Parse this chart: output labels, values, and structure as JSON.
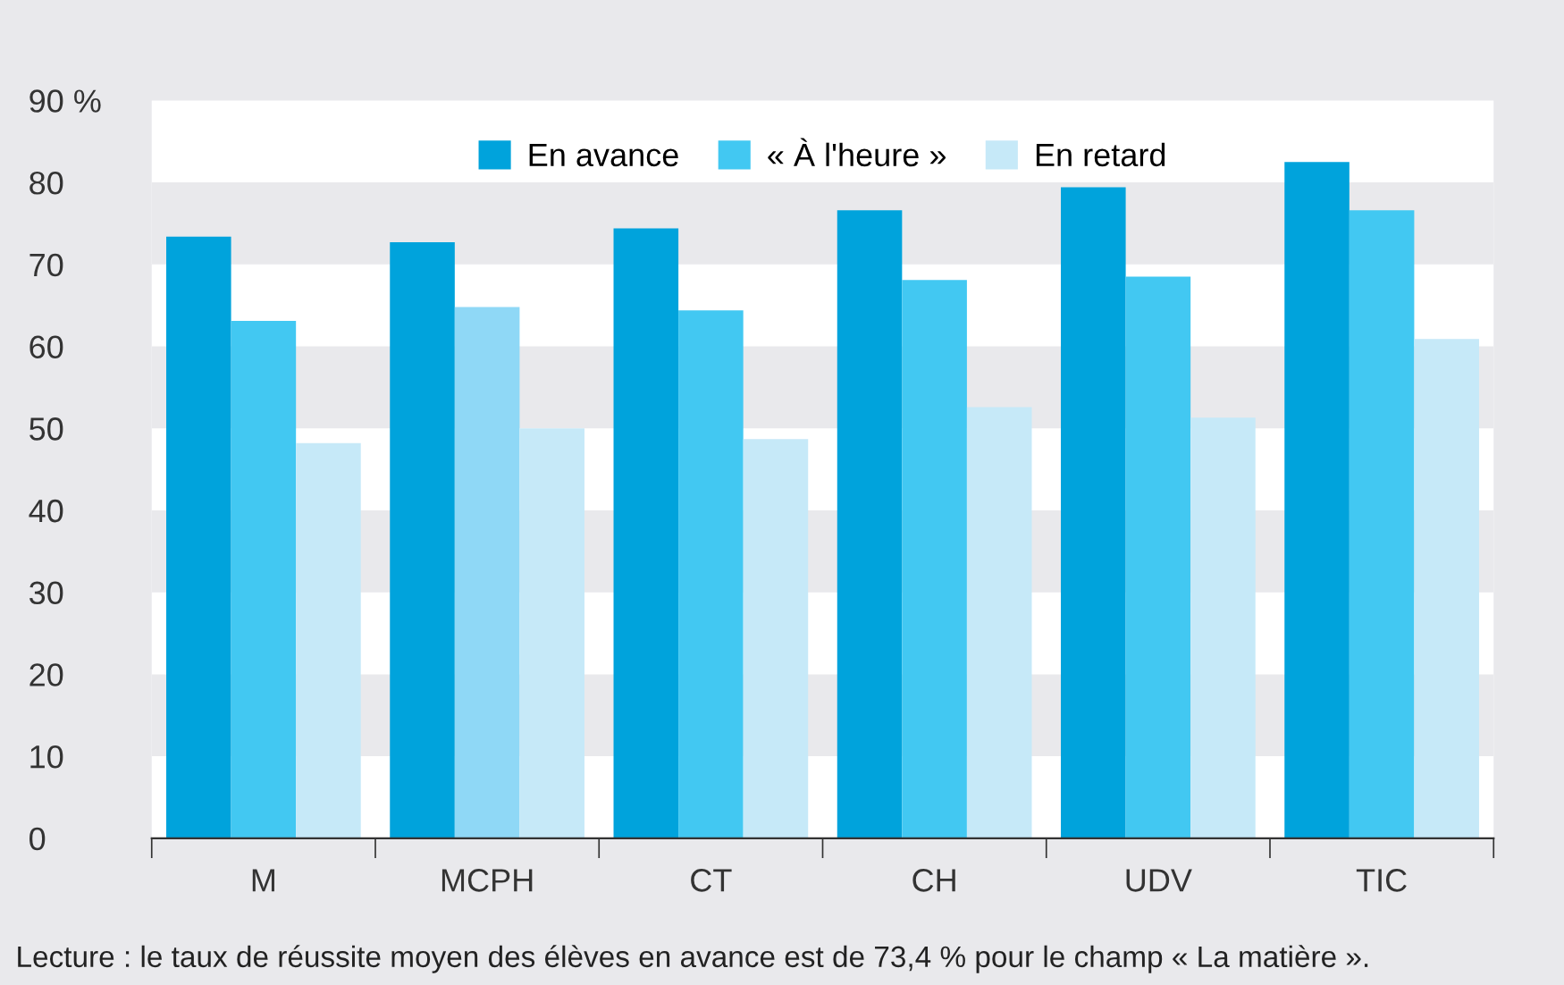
{
  "chart_data": {
    "type": "bar",
    "categories": [
      "M",
      "MCPH",
      "CT",
      "CH",
      "UDV",
      "TIC"
    ],
    "series": [
      {
        "name": "En avance",
        "color": "#00a3dc",
        "values": [
          73.4,
          72.7,
          74.4,
          76.6,
          79.4,
          82.5
        ]
      },
      {
        "name": "« À l'heure »",
        "color": "#42c8f2",
        "colors": [
          "#42c8f2",
          "#8fd8f6",
          "#42c8f2",
          "#42c8f2",
          "#42c8f2",
          "#42c8f2"
        ],
        "values": [
          63.1,
          64.8,
          64.4,
          68.1,
          68.5,
          76.6
        ]
      },
      {
        "name": "En retard",
        "color": "#c6e9f8",
        "values": [
          48.2,
          50.0,
          48.7,
          52.6,
          51.3,
          60.9
        ]
      }
    ],
    "ylim": [
      0,
      90
    ],
    "yticks": [
      0,
      10,
      20,
      30,
      40,
      50,
      60,
      70,
      {
        "value": 80,
        "label": "80"
      },
      {
        "value": 90,
        "label": "90 %"
      }
    ],
    "bands": [
      {
        "axis": "y",
        "from": 10,
        "to": 20,
        "color": "#e9e9ec"
      },
      {
        "axis": "y",
        "from": 30,
        "to": 40,
        "color": "#e9e9ec"
      },
      {
        "axis": "y",
        "from": 50,
        "to": 60,
        "color": "#e9e9ec"
      },
      {
        "axis": "y",
        "from": 70,
        "to": 80,
        "color": "#e9e9ec"
      }
    ],
    "legend": "top",
    "annotations": [
      "Lecture : le taux de réussite moyen des élèves en avance est de 73,4 % pour le champ « La matière »."
    ]
  }
}
